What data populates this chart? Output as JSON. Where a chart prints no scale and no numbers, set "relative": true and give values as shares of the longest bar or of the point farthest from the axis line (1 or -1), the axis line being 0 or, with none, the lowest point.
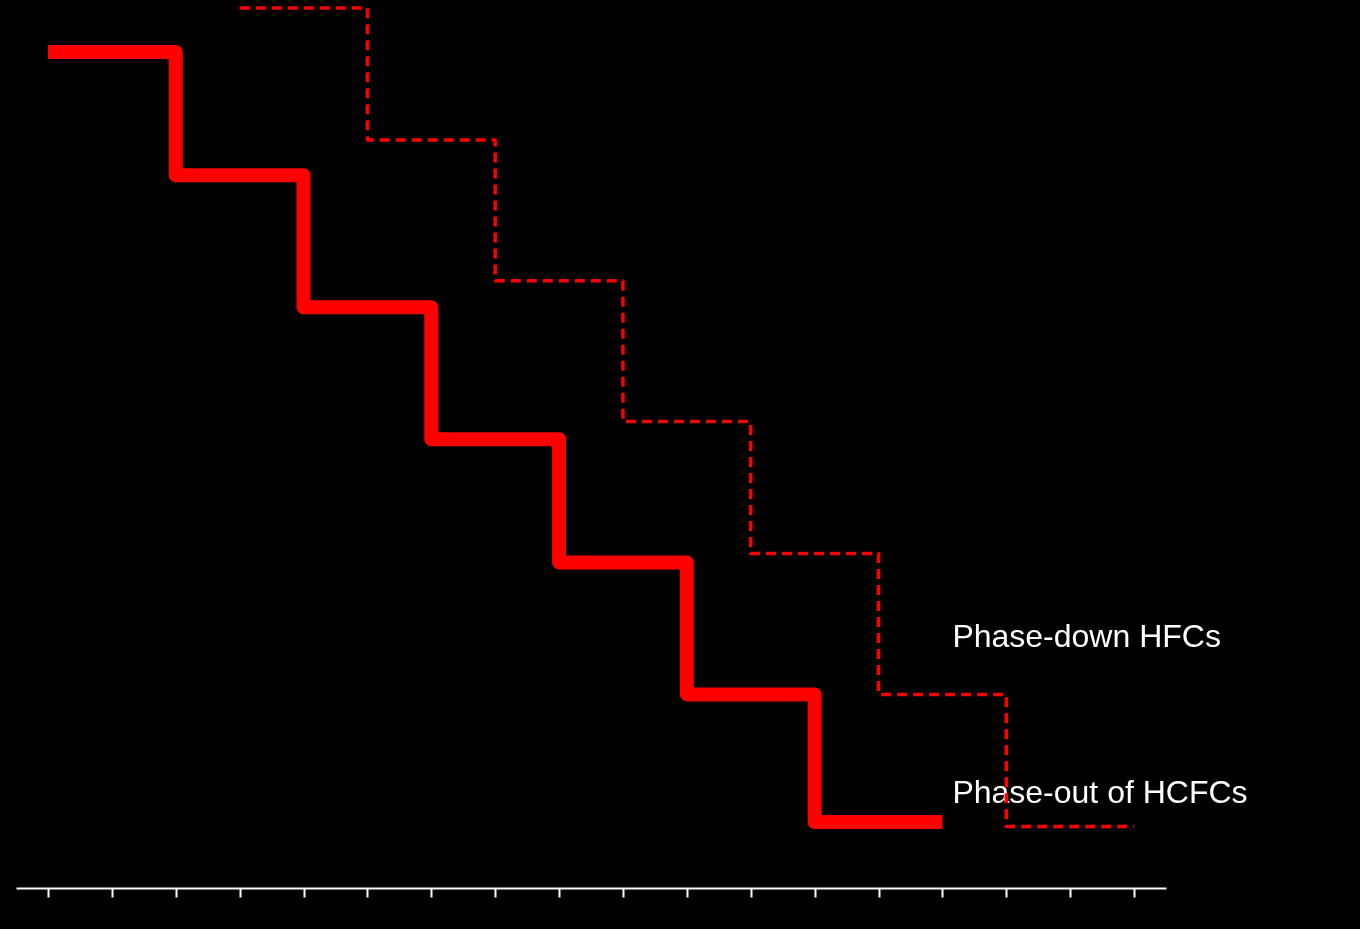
{
  "chart_data": {
    "type": "step",
    "relative": true,
    "categories": [
      null,
      null,
      null,
      null,
      null,
      null,
      null,
      null,
      null,
      null,
      null,
      null,
      null,
      null,
      null,
      null,
      null,
      null
    ],
    "series": [
      {
        "name": "Phase-out of HCFCs",
        "color": "#ff0000",
        "line_style": "solid",
        "values": [
          0.95,
          0.95,
          0.81,
          0.81,
          0.66,
          0.66,
          0.51,
          0.51,
          0.37,
          0.37,
          0.22,
          0.22,
          0.075,
          0.075,
          0.075,
          null,
          null,
          null
        ]
      },
      {
        "name": "Phase-down HFCs",
        "color": "#ff0000",
        "line_style": "dashed",
        "values": [
          null,
          null,
          null,
          1,
          1,
          0.85,
          0.85,
          0.69,
          0.69,
          0.53,
          0.53,
          0.38,
          0.38,
          0.22,
          0.22,
          0.07,
          0.07,
          0.07
        ]
      }
    ]
  }
}
